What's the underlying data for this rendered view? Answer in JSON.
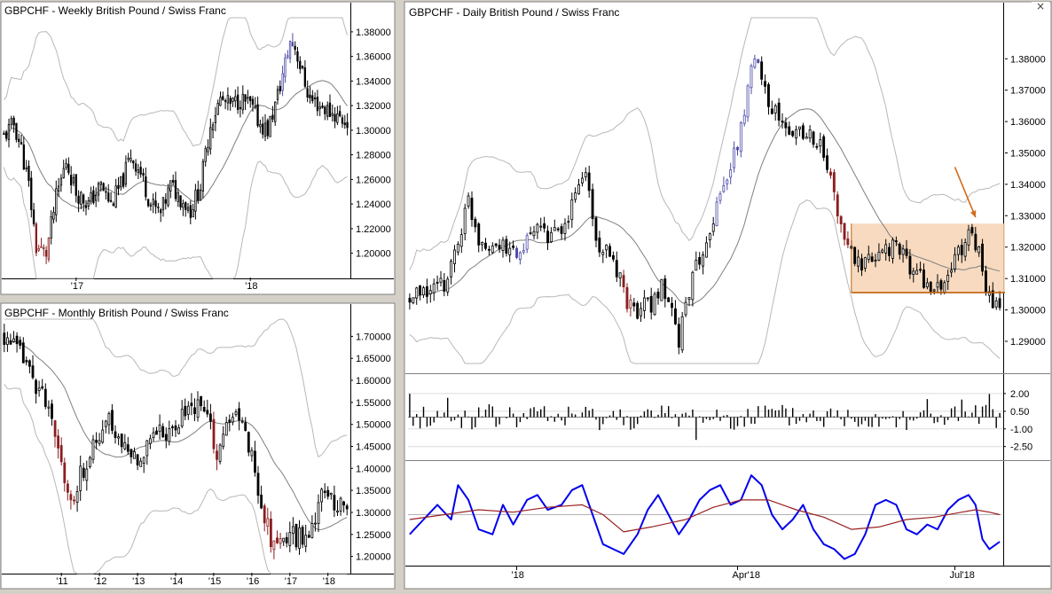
{
  "app": {
    "colors": {
      "background": "#ffffff",
      "bars": "#000000",
      "bull_strong": "#4b4ba8",
      "bear_strong": "#8a1f1f",
      "band": "#b8b8b8",
      "ma": "#7f7f7f",
      "oscillator": "#0000ee",
      "signal": "#992020",
      "box_fill": "#f6d4b4",
      "box_line": "#c0600e",
      "arrow": "#d06c1c",
      "frame": "#808080"
    },
    "close_icon": "×"
  },
  "chart_data": [
    {
      "id": "weekly",
      "type": "candlestick",
      "title": "GBPCHF - Weekly  British Pound / Swiss Franc",
      "ylim": [
        1.181,
        1.39
      ],
      "y_ticks": [
        1.2,
        1.22,
        1.24,
        1.26,
        1.28,
        1.3,
        1.32,
        1.34,
        1.36,
        1.38
      ],
      "y_tick_labels": [
        "1.20000",
        "1.22000",
        "1.24000",
        "1.26000",
        "1.28000",
        "1.30000",
        "1.32000",
        "1.34000",
        "1.36000",
        "1.38000"
      ],
      "x_tick_labels": [
        {
          "label": "'17",
          "index": 29
        },
        {
          "label": "'18",
          "index": 99
        }
      ],
      "close_path": [
        [
          0,
          1.295
        ],
        [
          4,
          1.305
        ],
        [
          7,
          1.285
        ],
        [
          10,
          1.255
        ],
        [
          13,
          1.205
        ],
        [
          17,
          1.2
        ],
        [
          21,
          1.245
        ],
        [
          25,
          1.275
        ],
        [
          29,
          1.25
        ],
        [
          34,
          1.24
        ],
        [
          39,
          1.255
        ],
        [
          43,
          1.24
        ],
        [
          47,
          1.255
        ],
        [
          51,
          1.28
        ],
        [
          55,
          1.265
        ],
        [
          59,
          1.24
        ],
        [
          63,
          1.232
        ],
        [
          67,
          1.255
        ],
        [
          71,
          1.245
        ],
        [
          75,
          1.235
        ],
        [
          79,
          1.255
        ],
        [
          83,
          1.305
        ],
        [
          87,
          1.325
        ],
        [
          91,
          1.32
        ],
        [
          95,
          1.325
        ],
        [
          99,
          1.32
        ],
        [
          103,
          1.305
        ],
        [
          106,
          1.3
        ],
        [
          109,
          1.32
        ],
        [
          112,
          1.345
        ],
        [
          115,
          1.372
        ],
        [
          117,
          1.368
        ],
        [
          120,
          1.345
        ],
        [
          123,
          1.325
        ],
        [
          127,
          1.32
        ],
        [
          131,
          1.315
        ],
        [
          135,
          1.31
        ],
        [
          138,
          1.306
        ]
      ],
      "bars": 139,
      "highlights": [
        {
          "from": 13,
          "to": 18,
          "color": "bear_strong"
        },
        {
          "from": 112,
          "to": 116,
          "color": "bull_strong"
        }
      ]
    },
    {
      "id": "monthly",
      "type": "candlestick",
      "title": "GBPCHF - Monthly  British Pound / Swiss Franc",
      "ylim": [
        1.165,
        1.735
      ],
      "y_ticks": [
        1.2,
        1.25,
        1.3,
        1.35,
        1.4,
        1.45,
        1.5,
        1.55,
        1.6,
        1.65,
        1.7
      ],
      "y_tick_labels": [
        "1.20000",
        "1.25000",
        "1.30000",
        "1.35000",
        "1.40000",
        "1.45000",
        "1.50000",
        "1.55000",
        "1.60000",
        "1.65000",
        "1.70000"
      ],
      "x_tick_labels": [
        {
          "label": "'11",
          "index": 18
        },
        {
          "label": "'12",
          "index": 30
        },
        {
          "label": "'13",
          "index": 42
        },
        {
          "label": "'14",
          "index": 54
        },
        {
          "label": "'15",
          "index": 66
        },
        {
          "label": "'16",
          "index": 78
        },
        {
          "label": "'17",
          "index": 90
        },
        {
          "label": "'18",
          "index": 102
        }
      ],
      "close_path": [
        [
          0,
          1.7
        ],
        [
          4,
          1.67
        ],
        [
          8,
          1.62
        ],
        [
          12,
          1.57
        ],
        [
          16,
          1.47
        ],
        [
          20,
          1.36
        ],
        [
          22,
          1.315
        ],
        [
          24,
          1.38
        ],
        [
          27,
          1.44
        ],
        [
          30,
          1.46
        ],
        [
          33,
          1.51
        ],
        [
          36,
          1.47
        ],
        [
          39,
          1.44
        ],
        [
          42,
          1.42
        ],
        [
          45,
          1.46
        ],
        [
          48,
          1.5
        ],
        [
          51,
          1.47
        ],
        [
          54,
          1.5
        ],
        [
          57,
          1.53
        ],
        [
          60,
          1.54
        ],
        [
          64,
          1.52
        ],
        [
          66,
          1.46
        ],
        [
          67,
          1.43
        ],
        [
          70,
          1.49
        ],
        [
          73,
          1.52
        ],
        [
          76,
          1.48
        ],
        [
          79,
          1.4
        ],
        [
          82,
          1.28
        ],
        [
          85,
          1.23
        ],
        [
          88,
          1.24
        ],
        [
          91,
          1.25
        ],
        [
          94,
          1.24
        ],
        [
          97,
          1.28
        ],
        [
          100,
          1.33
        ],
        [
          103,
          1.34
        ],
        [
          106,
          1.31
        ],
        [
          108,
          1.315
        ]
      ],
      "bars": 109,
      "highlights": [
        {
          "from": 16,
          "to": 22,
          "color": "bear_strong"
        },
        {
          "from": 66,
          "to": 67,
          "color": "bear_strong"
        },
        {
          "from": 82,
          "to": 87,
          "color": "bear_strong"
        }
      ]
    },
    {
      "id": "daily",
      "type": "candlestick",
      "title": "GBPCHF - Daily  British Pound / Swiss Franc",
      "ylim": [
        1.2835,
        1.3925
      ],
      "y_ticks": [
        1.29,
        1.3,
        1.31,
        1.32,
        1.33,
        1.34,
        1.35,
        1.36,
        1.37,
        1.38
      ],
      "y_tick_labels": [
        "1.29000",
        "1.30000",
        "1.31000",
        "1.32000",
        "1.33000",
        "1.34000",
        "1.35000",
        "1.36000",
        "1.37000",
        "1.38000"
      ],
      "x_tick_labels": [
        {
          "label": "'18",
          "index": 31
        },
        {
          "label": "Apr'18",
          "index": 95
        },
        {
          "label": "Jul'18",
          "index": 158
        }
      ],
      "close_path": [
        [
          0,
          1.303
        ],
        [
          5,
          1.306
        ],
        [
          10,
          1.308
        ],
        [
          14,
          1.322
        ],
        [
          17,
          1.335
        ],
        [
          20,
          1.323
        ],
        [
          24,
          1.321
        ],
        [
          28,
          1.319
        ],
        [
          32,
          1.318
        ],
        [
          36,
          1.325
        ],
        [
          40,
          1.324
        ],
        [
          44,
          1.323
        ],
        [
          48,
          1.337
        ],
        [
          51,
          1.345
        ],
        [
          54,
          1.322
        ],
        [
          57,
          1.318
        ],
        [
          60,
          1.312
        ],
        [
          63,
          1.303
        ],
        [
          66,
          1.3
        ],
        [
          70,
          1.302
        ],
        [
          73,
          1.307
        ],
        [
          76,
          1.298
        ],
        [
          78,
          1.29
        ],
        [
          80,
          1.303
        ],
        [
          83,
          1.313
        ],
        [
          86,
          1.323
        ],
        [
          89,
          1.333
        ],
        [
          92,
          1.343
        ],
        [
          95,
          1.352
        ],
        [
          97,
          1.364
        ],
        [
          99,
          1.376
        ],
        [
          101,
          1.381
        ],
        [
          104,
          1.367
        ],
        [
          107,
          1.361
        ],
        [
          110,
          1.355
        ],
        [
          113,
          1.358
        ],
        [
          116,
          1.356
        ],
        [
          119,
          1.352
        ],
        [
          122,
          1.342
        ],
        [
          125,
          1.326
        ],
        [
          128,
          1.318
        ],
        [
          131,
          1.313
        ],
        [
          134,
          1.316
        ],
        [
          137,
          1.32
        ],
        [
          140,
          1.32
        ],
        [
          143,
          1.318
        ],
        [
          146,
          1.312
        ],
        [
          149,
          1.31
        ],
        [
          152,
          1.305
        ],
        [
          155,
          1.309
        ],
        [
          158,
          1.316
        ],
        [
          161,
          1.322
        ],
        [
          163,
          1.326
        ],
        [
          165,
          1.318
        ],
        [
          167,
          1.307
        ],
        [
          169,
          1.301
        ],
        [
          171,
          1.302
        ]
      ],
      "bars": 172,
      "highlights": [
        {
          "from": 31,
          "to": 34,
          "color": "bull_strong"
        },
        {
          "from": 62,
          "to": 64,
          "color": "bear_strong"
        },
        {
          "from": 89,
          "to": 95,
          "color": "bull_strong"
        },
        {
          "from": 96,
          "to": 101,
          "color": "bull_strong"
        },
        {
          "from": 122,
          "to": 127,
          "color": "bear_strong"
        }
      ],
      "range_box": {
        "x_from": 128,
        "x_to": 172,
        "y_low": 1.3055,
        "y_high": 1.3275
      },
      "support_line": 1.3055,
      "arrow_annotation": {
        "from": {
          "index": 158,
          "value": 1.3455
        },
        "to": {
          "index": 164,
          "value": 1.3295
        }
      }
    },
    {
      "id": "daily_histogram",
      "type": "bar",
      "ylim": [
        -3.5,
        3.5
      ],
      "y_ticks": [
        2.0,
        0.5,
        -1.0,
        -2.5
      ],
      "y_tick_labels": [
        "2.00",
        "0.50",
        "-1.00",
        "-2.50"
      ],
      "bars": 172
    },
    {
      "id": "daily_oscillator",
      "type": "line",
      "ylim": [
        -1.0,
        1.0
      ],
      "midline": 0.0,
      "series": [
        {
          "role": "oscillator",
          "points": [
            [
              0,
              -0.4
            ],
            [
              4,
              -0.1
            ],
            [
              8,
              0.2
            ],
            [
              12,
              -0.1
            ],
            [
              14,
              0.6
            ],
            [
              17,
              0.3
            ],
            [
              20,
              -0.3
            ],
            [
              24,
              -0.4
            ],
            [
              27,
              0.2
            ],
            [
              30,
              -0.2
            ],
            [
              34,
              0.3
            ],
            [
              37,
              0.4
            ],
            [
              40,
              0.1
            ],
            [
              44,
              0.2
            ],
            [
              47,
              0.5
            ],
            [
              50,
              0.6
            ],
            [
              53,
              0.0
            ],
            [
              56,
              -0.6
            ],
            [
              59,
              -0.7
            ],
            [
              62,
              -0.8
            ],
            [
              66,
              -0.4
            ],
            [
              69,
              0.1
            ],
            [
              72,
              0.4
            ],
            [
              75,
              0.0
            ],
            [
              78,
              -0.4
            ],
            [
              81,
              -0.1
            ],
            [
              84,
              0.3
            ],
            [
              87,
              0.5
            ],
            [
              90,
              0.6
            ],
            [
              93,
              0.2
            ],
            [
              96,
              0.3
            ],
            [
              99,
              0.8
            ],
            [
              102,
              0.6
            ],
            [
              105,
              0.0
            ],
            [
              108,
              -0.3
            ],
            [
              111,
              -0.1
            ],
            [
              114,
              0.2
            ],
            [
              117,
              -0.3
            ],
            [
              120,
              -0.6
            ],
            [
              123,
              -0.7
            ],
            [
              126,
              -0.9
            ],
            [
              129,
              -0.8
            ],
            [
              132,
              -0.4
            ],
            [
              135,
              0.2
            ],
            [
              138,
              0.3
            ],
            [
              141,
              0.2
            ],
            [
              144,
              -0.3
            ],
            [
              147,
              -0.4
            ],
            [
              150,
              -0.2
            ],
            [
              153,
              -0.3
            ],
            [
              156,
              0.1
            ],
            [
              159,
              0.3
            ],
            [
              162,
              0.4
            ],
            [
              164,
              0.2
            ],
            [
              166,
              -0.5
            ],
            [
              168,
              -0.7
            ],
            [
              171,
              -0.55
            ]
          ]
        },
        {
          "role": "signal",
          "points": [
            [
              0,
              -0.1
            ],
            [
              10,
              0.0
            ],
            [
              20,
              0.1
            ],
            [
              30,
              0.05
            ],
            [
              40,
              0.15
            ],
            [
              50,
              0.2
            ],
            [
              56,
              0.0
            ],
            [
              62,
              -0.35
            ],
            [
              70,
              -0.25
            ],
            [
              80,
              -0.1
            ],
            [
              88,
              0.15
            ],
            [
              96,
              0.3
            ],
            [
              104,
              0.3
            ],
            [
              112,
              0.1
            ],
            [
              120,
              -0.05
            ],
            [
              128,
              -0.3
            ],
            [
              136,
              -0.25
            ],
            [
              144,
              -0.1
            ],
            [
              152,
              -0.05
            ],
            [
              160,
              0.05
            ],
            [
              164,
              0.1
            ],
            [
              168,
              0.05
            ],
            [
              171,
              0.0
            ]
          ]
        }
      ]
    }
  ]
}
